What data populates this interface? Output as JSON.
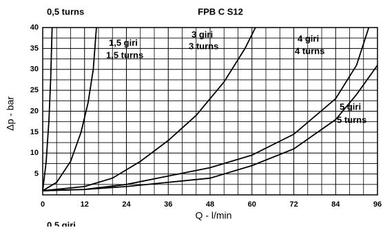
{
  "chart_data": {
    "type": "line",
    "title": "FPB C S12",
    "x_label": "Q - l/min",
    "y_label": "Δp - bar",
    "xlim": [
      0,
      96
    ],
    "xticks": [
      0,
      12,
      24,
      36,
      48,
      60,
      72,
      84,
      96
    ],
    "ylim": [
      0,
      40
    ],
    "yticks": [
      5,
      10,
      15,
      20,
      25,
      30,
      35,
      40
    ],
    "xminorticks": [
      4,
      8,
      16,
      20,
      28,
      32,
      40,
      44,
      52,
      56,
      64,
      68,
      76,
      80,
      88,
      92
    ],
    "yminorticks": [
      2.5,
      7.5,
      12.5,
      17.5,
      22.5,
      27.5,
      32.5,
      37.5
    ],
    "grid": true,
    "series": [
      {
        "color": "#000000",
        "x": [
          0,
          1,
          1.8,
          2.3,
          2.7
        ],
        "values": [
          1,
          8,
          18,
          28,
          40
        ]
      },
      {
        "color": "#000000",
        "x": [
          0,
          4,
          8,
          11,
          13,
          14.5,
          15.4
        ],
        "values": [
          1,
          3,
          8,
          15,
          22,
          30,
          40
        ]
      },
      {
        "color": "#000000",
        "x": [
          0,
          12,
          20,
          28,
          36,
          44,
          52,
          58,
          61
        ],
        "values": [
          1,
          2,
          4,
          8,
          13,
          19,
          27,
          35,
          40
        ]
      },
      {
        "color": "#000000",
        "x": [
          0,
          12,
          24,
          36,
          48,
          60,
          72,
          84,
          90,
          93.5
        ],
        "values": [
          1,
          1.3,
          2.5,
          4.5,
          6.5,
          9.5,
          14.5,
          23,
          31,
          40
        ]
      },
      {
        "color": "#000000",
        "x": [
          0,
          12,
          24,
          36,
          48,
          60,
          72,
          84,
          90,
          96
        ],
        "values": [
          1,
          1.3,
          2,
          3,
          4,
          7,
          11,
          18,
          24,
          31
        ]
      }
    ],
    "annotations": [
      "0,5 turns",
      "1,5 giri",
      "1,5 turns",
      "3 giri",
      "3 turns",
      "4 giri",
      "4 turns",
      "5 giri",
      "5 turns",
      "0,5 giri"
    ]
  }
}
